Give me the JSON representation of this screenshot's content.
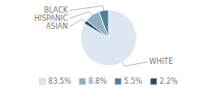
{
  "chart_data": {
    "type": "pie",
    "categories": [
      "WHITE",
      "ASIAN",
      "HISPANIC",
      "BLACK"
    ],
    "values": [
      83.5,
      2.2,
      8.8,
      5.5
    ],
    "colors": [
      "#dce6f0",
      "#1f4e6e",
      "#8eafc2",
      "#4f7f9b"
    ],
    "value_labels": [
      "83.5%",
      "2.2%",
      "8.8%",
      "5.5%"
    ],
    "legend": "bottom"
  }
}
